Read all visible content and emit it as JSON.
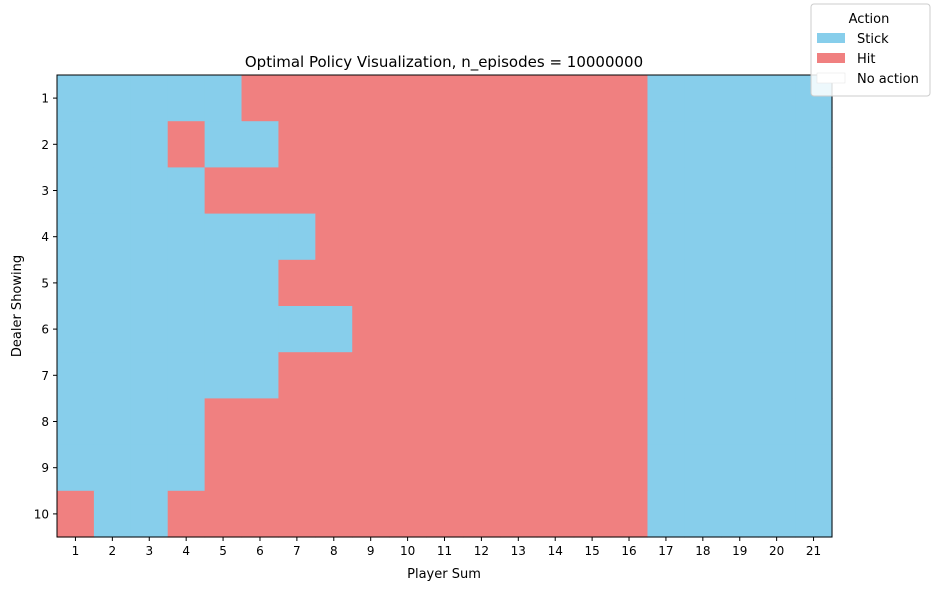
{
  "chart_data": {
    "type": "heatmap",
    "title": "Optimal Policy Visualization, n_episodes = 10000000",
    "xlabel": "Player Sum",
    "ylabel": "Dealer Showing",
    "x_categories": [
      "1",
      "2",
      "3",
      "4",
      "5",
      "6",
      "7",
      "8",
      "9",
      "10",
      "11",
      "12",
      "13",
      "14",
      "15",
      "16",
      "17",
      "18",
      "19",
      "20",
      "21"
    ],
    "y_categories": [
      "1",
      "2",
      "3",
      "4",
      "5",
      "6",
      "7",
      "8",
      "9",
      "10"
    ],
    "legend": {
      "title": "Action",
      "placement": "top-right",
      "entries": [
        {
          "label": "Stick",
          "code": 0,
          "color": "#87ceeb"
        },
        {
          "label": "Hit",
          "code": 1,
          "color": "#f08080"
        },
        {
          "label": "No action",
          "code": -1,
          "color": "#ffffff"
        }
      ]
    },
    "grid": false,
    "values": [
      [
        0,
        0,
        0,
        0,
        0,
        1,
        1,
        1,
        1,
        1,
        1,
        1,
        1,
        1,
        1,
        1,
        0,
        0,
        0,
        0,
        0
      ],
      [
        0,
        0,
        0,
        1,
        0,
        0,
        1,
        1,
        1,
        1,
        1,
        1,
        1,
        1,
        1,
        1,
        0,
        0,
        0,
        0,
        0
      ],
      [
        0,
        0,
        0,
        0,
        1,
        1,
        1,
        1,
        1,
        1,
        1,
        1,
        1,
        1,
        1,
        1,
        0,
        0,
        0,
        0,
        0
      ],
      [
        0,
        0,
        0,
        0,
        0,
        0,
        0,
        1,
        1,
        1,
        1,
        1,
        1,
        1,
        1,
        1,
        0,
        0,
        0,
        0,
        0
      ],
      [
        0,
        0,
        0,
        0,
        0,
        0,
        1,
        1,
        1,
        1,
        1,
        1,
        1,
        1,
        1,
        1,
        0,
        0,
        0,
        0,
        0
      ],
      [
        0,
        0,
        0,
        0,
        0,
        0,
        0,
        0,
        1,
        1,
        1,
        1,
        1,
        1,
        1,
        1,
        0,
        0,
        0,
        0,
        0
      ],
      [
        0,
        0,
        0,
        0,
        0,
        0,
        1,
        1,
        1,
        1,
        1,
        1,
        1,
        1,
        1,
        1,
        0,
        0,
        0,
        0,
        0
      ],
      [
        0,
        0,
        0,
        0,
        1,
        1,
        1,
        1,
        1,
        1,
        1,
        1,
        1,
        1,
        1,
        1,
        0,
        0,
        0,
        0,
        0
      ],
      [
        0,
        0,
        0,
        0,
        1,
        1,
        1,
        1,
        1,
        1,
        1,
        1,
        1,
        1,
        1,
        1,
        0,
        0,
        0,
        0,
        0
      ],
      [
        1,
        0,
        0,
        1,
        1,
        1,
        1,
        1,
        1,
        1,
        1,
        1,
        1,
        1,
        1,
        1,
        0,
        0,
        0,
        0,
        0
      ]
    ]
  }
}
